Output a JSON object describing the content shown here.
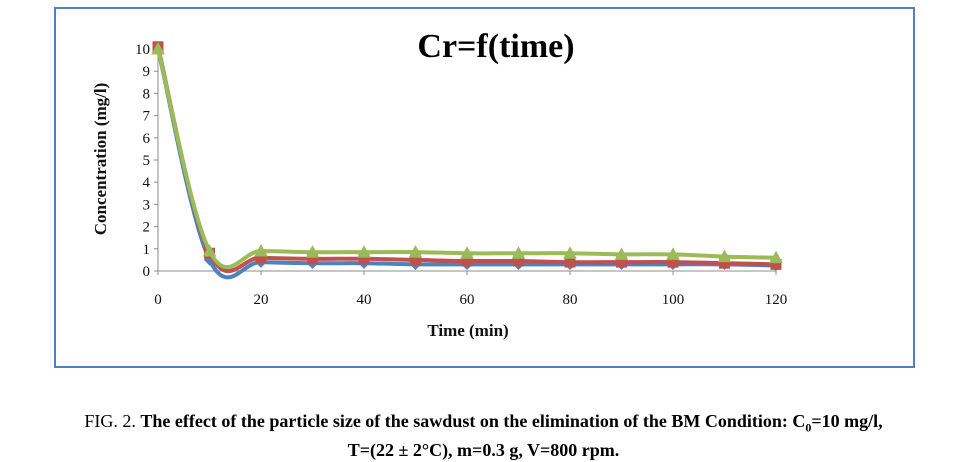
{
  "chart_data": {
    "type": "line",
    "title": "Cr=f(time)",
    "xlabel": "Time (min)",
    "ylabel": "Concentration  (mg/l)",
    "xlim": [
      0,
      120
    ],
    "ylim": [
      0,
      10
    ],
    "xticks": [
      0,
      20,
      40,
      60,
      80,
      100,
      120
    ],
    "yticks": [
      0,
      1,
      2,
      3,
      4,
      5,
      6,
      7,
      8,
      9,
      10
    ],
    "grid": false,
    "legend": "none",
    "series": [
      {
        "color": "#4f81bd",
        "marker": "diamond",
        "x": [
          0,
          10,
          20,
          30,
          40,
          50,
          60,
          70,
          80,
          90,
          100,
          110,
          120
        ],
        "y": [
          10.0,
          0.5,
          0.4,
          0.35,
          0.35,
          0.3,
          0.3,
          0.3,
          0.3,
          0.3,
          0.3,
          0.3,
          0.25
        ]
      },
      {
        "color": "#c0504d",
        "marker": "square",
        "x": [
          0,
          10,
          20,
          30,
          40,
          50,
          60,
          70,
          80,
          90,
          100,
          110,
          120
        ],
        "y": [
          10.1,
          0.8,
          0.6,
          0.55,
          0.55,
          0.5,
          0.45,
          0.45,
          0.4,
          0.4,
          0.4,
          0.35,
          0.3
        ]
      },
      {
        "color": "#9bbb59",
        "marker": "triangle",
        "x": [
          0,
          10,
          20,
          30,
          40,
          50,
          60,
          70,
          80,
          90,
          100,
          110,
          120
        ],
        "y": [
          10.0,
          0.9,
          0.9,
          0.85,
          0.85,
          0.85,
          0.8,
          0.8,
          0.8,
          0.75,
          0.75,
          0.65,
          0.6
        ]
      }
    ]
  },
  "caption": {
    "lead": "FIG. 2.",
    "text_before_sub": "The effect of the particle size of the sawdust on the elimination of the BM Condition: C",
    "sub": "0",
    "text_after_sub": "=10 mg/l,",
    "line2": "T=(22 ± 2°C), m=0.3 g, V=800 rpm."
  }
}
